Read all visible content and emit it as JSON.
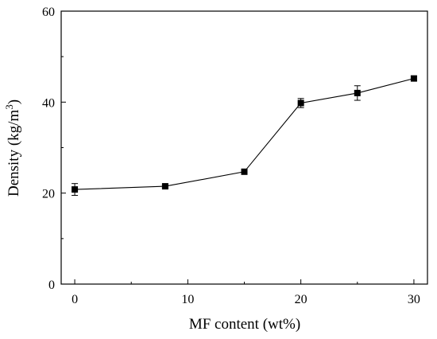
{
  "chart_data": {
    "type": "line",
    "xlabel": "MF content (wt%)",
    "ylabel_main": "Density (kg/m",
    "ylabel_sup": "3",
    "ylabel_close": ")",
    "xlim": [
      -1.2,
      31.2
    ],
    "ylim": [
      0,
      60
    ],
    "xticks": [
      0,
      10,
      20,
      30
    ],
    "yticks": [
      0,
      20,
      40,
      60
    ],
    "xtick_labels": [
      "0",
      "10",
      "20",
      "30"
    ],
    "ytick_labels": [
      "0",
      "20",
      "40",
      "60"
    ],
    "grid": false,
    "series": [
      {
        "x": [
          0,
          8,
          15,
          20,
          25,
          30
        ],
        "y": [
          20.8,
          21.5,
          24.7,
          39.8,
          42.0,
          45.2
        ],
        "error": [
          1.3,
          0.3,
          0.4,
          1.0,
          1.6,
          0.5
        ],
        "color": "#000000",
        "marker": "square"
      }
    ]
  }
}
